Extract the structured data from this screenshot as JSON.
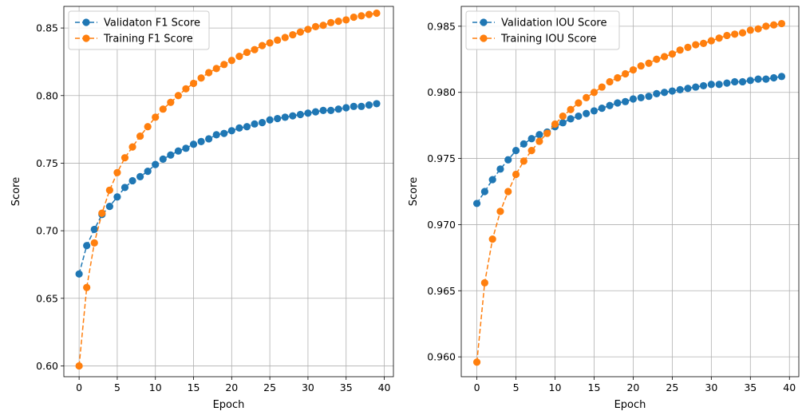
{
  "chart_data": [
    {
      "type": "line",
      "title": "",
      "xlabel": "Epoch",
      "ylabel": "Score",
      "xlim": [
        -2,
        41.2
      ],
      "ylim": [
        0.592,
        0.866
      ],
      "xticks": [
        0,
        5,
        10,
        15,
        20,
        25,
        30,
        35,
        40
      ],
      "xtick_labels": [
        "0",
        "5",
        "10",
        "15",
        "20",
        "25",
        "30",
        "35",
        "40"
      ],
      "yticks": [
        0.6,
        0.65,
        0.7,
        0.75,
        0.8,
        0.85
      ],
      "ytick_labels": [
        "0.60",
        "0.65",
        "0.70",
        "0.75",
        "0.80",
        "0.85"
      ],
      "grid": true,
      "legend_position": "top-left",
      "x": [
        0,
        1,
        2,
        3,
        4,
        5,
        6,
        7,
        8,
        9,
        10,
        11,
        12,
        13,
        14,
        15,
        16,
        17,
        18,
        19,
        20,
        21,
        22,
        23,
        24,
        25,
        26,
        27,
        28,
        29,
        30,
        31,
        32,
        33,
        34,
        35,
        36,
        37,
        38,
        39
      ],
      "series": [
        {
          "name": "Validaton F1 Score",
          "color": "#1f77b4",
          "values": [
            0.668,
            0.689,
            0.701,
            0.712,
            0.718,
            0.725,
            0.732,
            0.737,
            0.74,
            0.744,
            0.749,
            0.753,
            0.756,
            0.759,
            0.761,
            0.764,
            0.766,
            0.768,
            0.771,
            0.772,
            0.774,
            0.776,
            0.777,
            0.779,
            0.78,
            0.782,
            0.783,
            0.784,
            0.785,
            0.786,
            0.787,
            0.788,
            0.789,
            0.789,
            0.79,
            0.791,
            0.792,
            0.792,
            0.793,
            0.794
          ]
        },
        {
          "name": "Training F1 Score",
          "color": "#ff7f0e",
          "values": [
            0.6,
            0.658,
            0.691,
            0.713,
            0.73,
            0.743,
            0.754,
            0.762,
            0.77,
            0.777,
            0.784,
            0.79,
            0.795,
            0.8,
            0.805,
            0.809,
            0.813,
            0.817,
            0.82,
            0.823,
            0.826,
            0.829,
            0.832,
            0.834,
            0.837,
            0.839,
            0.841,
            0.843,
            0.845,
            0.847,
            0.849,
            0.851,
            0.852,
            0.854,
            0.855,
            0.856,
            0.858,
            0.859,
            0.86,
            0.861
          ]
        }
      ]
    },
    {
      "type": "line",
      "title": "",
      "xlabel": "Epoch",
      "ylabel": "Score",
      "xlim": [
        -2,
        41.2
      ],
      "ylim": [
        0.9585,
        0.9865
      ],
      "xticks": [
        0,
        5,
        10,
        15,
        20,
        25,
        30,
        35,
        40
      ],
      "xtick_labels": [
        "0",
        "5",
        "10",
        "15",
        "20",
        "25",
        "30",
        "35",
        "40"
      ],
      "yticks": [
        0.96,
        0.965,
        0.97,
        0.975,
        0.98,
        0.985
      ],
      "ytick_labels": [
        "0.960",
        "0.965",
        "0.970",
        "0.975",
        "0.980",
        "0.985"
      ],
      "grid": true,
      "legend_position": "top-left",
      "x": [
        0,
        1,
        2,
        3,
        4,
        5,
        6,
        7,
        8,
        9,
        10,
        11,
        12,
        13,
        14,
        15,
        16,
        17,
        18,
        19,
        20,
        21,
        22,
        23,
        24,
        25,
        26,
        27,
        28,
        29,
        30,
        31,
        32,
        33,
        34,
        35,
        36,
        37,
        38,
        39
      ],
      "series": [
        {
          "name": "Validation IOU Score",
          "color": "#1f77b4",
          "values": [
            0.9716,
            0.9725,
            0.9734,
            0.9742,
            0.9749,
            0.9756,
            0.9761,
            0.9765,
            0.9768,
            0.977,
            0.9774,
            0.9777,
            0.978,
            0.9782,
            0.9784,
            0.9786,
            0.9788,
            0.979,
            0.9792,
            0.9793,
            0.9795,
            0.9796,
            0.9797,
            0.9799,
            0.98,
            0.9801,
            0.9802,
            0.9803,
            0.9804,
            0.9805,
            0.9806,
            0.9806,
            0.9807,
            0.9808,
            0.9808,
            0.9809,
            0.981,
            0.981,
            0.9811,
            0.9812
          ]
        },
        {
          "name": "Training IOU Score",
          "color": "#ff7f0e",
          "values": [
            0.9596,
            0.9656,
            0.9689,
            0.971,
            0.9725,
            0.9738,
            0.9748,
            0.9756,
            0.9763,
            0.9769,
            0.9776,
            0.9782,
            0.9787,
            0.9792,
            0.9796,
            0.98,
            0.9804,
            0.9808,
            0.9811,
            0.9814,
            0.9817,
            0.982,
            0.9822,
            0.9825,
            0.9827,
            0.9829,
            0.9832,
            0.9834,
            0.9836,
            0.9837,
            0.9839,
            0.9841,
            0.9843,
            0.9844,
            0.9845,
            0.9847,
            0.9848,
            0.985,
            0.9851,
            0.9852
          ]
        }
      ]
    }
  ]
}
